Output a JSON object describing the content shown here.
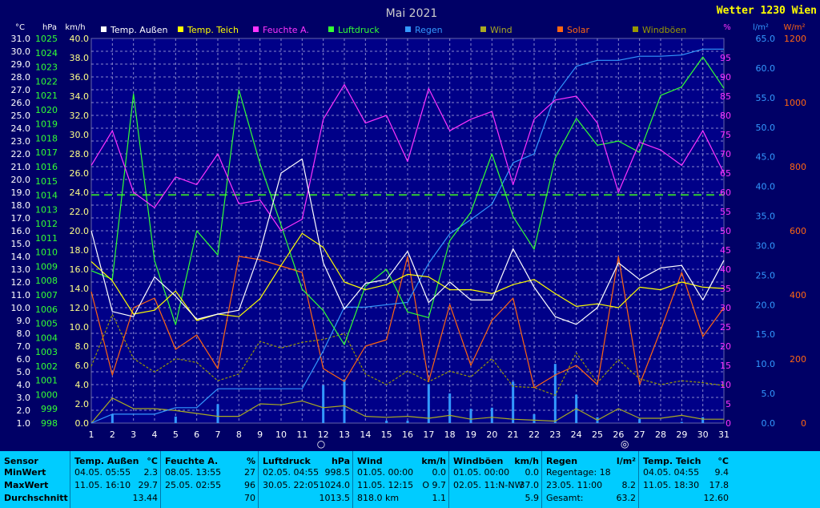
{
  "brand": "Wetter 1230 Wien",
  "chart_data": {
    "type": "line",
    "title": "Mai 2021",
    "x": [
      1,
      2,
      3,
      4,
      5,
      6,
      7,
      8,
      9,
      10,
      11,
      12,
      13,
      14,
      15,
      16,
      17,
      18,
      19,
      20,
      21,
      22,
      23,
      24,
      25,
      26,
      27,
      28,
      29,
      30,
      31
    ],
    "xlim": [
      1,
      31
    ],
    "axes": {
      "temp": {
        "unit": "°C",
        "min": 1.0,
        "max": 31.0,
        "ticks": [
          "31.0",
          "30.0",
          "29.0",
          "28.0",
          "27.0",
          "26.0",
          "25.0",
          "24.0",
          "23.0",
          "22.0",
          "21.0",
          "20.0",
          "19.0",
          "18.0",
          "17.0",
          "16.0",
          "15.0",
          "14.0",
          "13.0",
          "12.0",
          "11.0",
          "10.0",
          "9.0",
          "8.0",
          "7.0",
          "6.0",
          "5.0",
          "4.0",
          "3.0",
          "2.0",
          "1.0"
        ]
      },
      "pressure": {
        "unit": "hPa",
        "min": 998,
        "max": 1025,
        "ticks": [
          "1025",
          "1024",
          "1023",
          "1022",
          "1021",
          "1020",
          "1019",
          "1018",
          "1017",
          "1016",
          "1015",
          "1014",
          "1013",
          "1012",
          "1011",
          "1010",
          "1009",
          "1008",
          "1007",
          "1006",
          "1005",
          "1004",
          "1003",
          "1002",
          "1001",
          "1000",
          "999",
          "998"
        ]
      },
      "wind": {
        "unit": "km/h",
        "min": 0,
        "max": 40,
        "ticks": [
          "40.0",
          "38.0",
          "36.0",
          "34.0",
          "32.0",
          "30.0",
          "28.0",
          "26.0",
          "24.0",
          "22.0",
          "20.0",
          "18.0",
          "16.0",
          "14.0",
          "12.0",
          "10.0",
          "8.0",
          "6.0",
          "4.0",
          "2.0",
          "0.0"
        ]
      },
      "humidity": {
        "unit": "%",
        "min": 0,
        "max": 100,
        "ticks": [
          "95",
          "90",
          "85",
          "80",
          "75",
          "70",
          "65",
          "60",
          "55",
          "50",
          "45",
          "40",
          "35",
          "30",
          "25",
          "20",
          "15",
          "10",
          "5",
          "0"
        ]
      },
      "rain": {
        "unit": "l/m²",
        "min": 0,
        "max": 65,
        "ticks": [
          "65.0",
          "60.0",
          "55.0",
          "50.0",
          "45.0",
          "40.0",
          "35.0",
          "30.0",
          "25.0",
          "20.0",
          "15.0",
          "10.0",
          "5.0",
          "0.0"
        ]
      },
      "solar": {
        "unit": "W/m²",
        "min": 0,
        "max": 1200,
        "ticks": [
          "1200",
          "1000",
          "800",
          "600",
          "400",
          "200",
          "0"
        ]
      }
    },
    "series": [
      {
        "name": "Temp. Außen",
        "color": "#ffffff",
        "axis": "temp",
        "values": [
          16.0,
          9.7,
          9.3,
          12.4,
          10.9,
          9.1,
          9.5,
          9.8,
          14.4,
          20.5,
          21.6,
          13.5,
          9.9,
          11.9,
          12.2,
          14.4,
          10.4,
          12.0,
          10.6,
          10.6,
          14.6,
          11.6,
          9.3,
          8.7,
          10.0,
          13.5,
          12.2,
          13.1,
          13.3,
          10.6,
          13.7
        ]
      },
      {
        "name": "Temp. Teich",
        "color": "#ffff00",
        "axis": "temp",
        "values": [
          13.6,
          12.1,
          9.5,
          9.8,
          11.3,
          9.0,
          9.5,
          9.3,
          10.7,
          13.3,
          15.8,
          14.7,
          12.0,
          11.4,
          11.8,
          12.6,
          12.4,
          11.4,
          11.4,
          11.1,
          11.8,
          12.2,
          11.1,
          10.1,
          10.3,
          10.0,
          11.6,
          11.4,
          12.0,
          11.6,
          11.5
        ]
      },
      {
        "name": "Feuchte A.",
        "color": "#ff33ff",
        "axis": "humidity",
        "values": [
          67,
          76,
          60,
          56,
          64,
          62,
          70,
          57,
          58,
          50,
          53,
          79,
          88,
          78,
          80,
          68,
          87,
          76,
          79,
          81,
          62,
          79,
          84,
          85,
          78,
          60,
          73,
          71,
          67,
          76,
          65
        ]
      },
      {
        "name": "Luftdruck",
        "color": "#33ff33",
        "axis": "pressure",
        "values": [
          1008.7,
          1008.1,
          1021.1,
          1009.4,
          1004.9,
          1011.5,
          1009.8,
          1021.4,
          1016.2,
          1011.9,
          1007.4,
          1005.9,
          1003.5,
          1007.6,
          1008.8,
          1005.8,
          1005.4,
          1010.8,
          1012.8,
          1016.9,
          1012.5,
          1010.2,
          1016.6,
          1019.4,
          1017.5,
          1017.8,
          1017.0,
          1021.0,
          1021.6,
          1023.7,
          1021.5
        ]
      },
      {
        "name": "Regen",
        "color": "#3399ff",
        "axis": "rain",
        "values": [
          0,
          1.5,
          1.5,
          1.5,
          2.6,
          2.6,
          5.8,
          5.8,
          5.8,
          5.8,
          5.8,
          12.2,
          19.6,
          19.6,
          20.0,
          20.4,
          27.0,
          32.0,
          34.4,
          37.0,
          44.0,
          45.5,
          55.5,
          60.3,
          61.3,
          61.3,
          62.0,
          62.0,
          62.2,
          63.2,
          63.2
        ]
      },
      {
        "name": "Wind",
        "color": "#aaaa22",
        "axis": "wind",
        "values": [
          0,
          2.6,
          1.5,
          1.5,
          1.3,
          1.0,
          0.7,
          0.7,
          2.0,
          1.9,
          2.3,
          1.6,
          1.8,
          0.7,
          0.6,
          0.7,
          0.5,
          0.8,
          0.4,
          0.6,
          0.4,
          0.3,
          0.2,
          1.5,
          0.3,
          1.5,
          0.5,
          0.5,
          0.8,
          0.4,
          0.4
        ]
      },
      {
        "name": "Solar",
        "color": "#ff6611",
        "axis": "solar",
        "values": [
          410,
          150,
          360,
          390,
          230,
          275,
          170,
          520,
          510,
          490,
          470,
          170,
          130,
          240,
          260,
          520,
          130,
          370,
          180,
          320,
          390,
          110,
          150,
          180,
          120,
          520,
          120,
          290,
          470,
          270,
          360
        ]
      },
      {
        "name": "Windböen",
        "color": "#999900",
        "axis": "wind",
        "values": [
          5.9,
          11.3,
          6.7,
          5.3,
          6.7,
          6.3,
          4.4,
          5.1,
          8.5,
          7.8,
          8.4,
          8.7,
          9.3,
          5.1,
          4.0,
          5.4,
          4.3,
          5.4,
          4.8,
          6.7,
          3.8,
          3.7,
          2.9,
          7.3,
          4.2,
          6.6,
          4.6,
          4.0,
          4.4,
          4.2,
          3.9
        ]
      }
    ],
    "rain_daily": {
      "name": "Regen (Tag)",
      "color": "#3399ff",
      "axis": "rain",
      "values": [
        0,
        1.5,
        0,
        0,
        1.1,
        0,
        3.2,
        0,
        0,
        0,
        0,
        6.4,
        7.4,
        0,
        0.4,
        0.4,
        6.6,
        5.0,
        2.4,
        2.6,
        7.0,
        1.5,
        10.0,
        4.8,
        1.0,
        0,
        0.7,
        0,
        0.2,
        1.0,
        0
      ]
    },
    "reference_line": {
      "axis": "temp",
      "value": 18.8,
      "color": "#33cc33",
      "style": "dashed"
    },
    "moon_markers": [
      {
        "day": 11.9,
        "glyph": "○"
      },
      {
        "day": 26.3,
        "glyph": "◎"
      }
    ]
  },
  "stats": {
    "row_labels": {
      "title": "Sensor",
      "min": "MinWert",
      "max": "MaxWert",
      "avg": "Durchschnitt"
    },
    "columns": [
      {
        "title": "Temp. Außen",
        "unit": "°C",
        "min_time": "04.05.  05:55",
        "min_val": "2.3",
        "max_time": "11.05.  16:10",
        "max_val": "29.7",
        "avg_left": "",
        "avg_val": "13.44"
      },
      {
        "title": "Feuchte A.",
        "unit": "%",
        "min_time": "08.05.  13:55",
        "min_val": "27",
        "max_time": "25.05.  02:55",
        "max_val": "96",
        "avg_left": "",
        "avg_val": "70"
      },
      {
        "title": "Luftdruck",
        "unit": "hPa",
        "min_time": "02.05.  04:55",
        "min_val": "998.5",
        "max_time": "30.05.  22:05",
        "max_val": "1024.0",
        "avg_left": "",
        "avg_val": "1013.5"
      },
      {
        "title": "Wind",
        "unit": "km/h",
        "min_time": "01.05.  00:00",
        "min_val": "0.0",
        "max_time": "11.05.  12:15",
        "max_val": "O  9.7",
        "avg_left": "818.0 km",
        "avg_val": "1.1"
      },
      {
        "title": "Windböen",
        "unit": "km/h",
        "min_time": "01.05.  00:00",
        "min_val": "0.0",
        "max_time": "02.05.   11:N-NW",
        "max_val": "37.0",
        "avg_left": "",
        "avg_val": "5.9"
      },
      {
        "title": "Regen",
        "unit": "l/m²",
        "min_time": "Regentage: 18",
        "min_val": "",
        "max_time": "23.05.  11:00",
        "max_val": "8.2",
        "avg_left": "Gesamt:",
        "avg_val": "63.2"
      },
      {
        "title": "Temp. Teich",
        "unit": "°C",
        "min_time": "04.05.  04:55",
        "min_val": "9.4",
        "max_time": "11.05.  18:30",
        "max_val": "17.8",
        "avg_left": "",
        "avg_val": "12.60"
      }
    ]
  }
}
